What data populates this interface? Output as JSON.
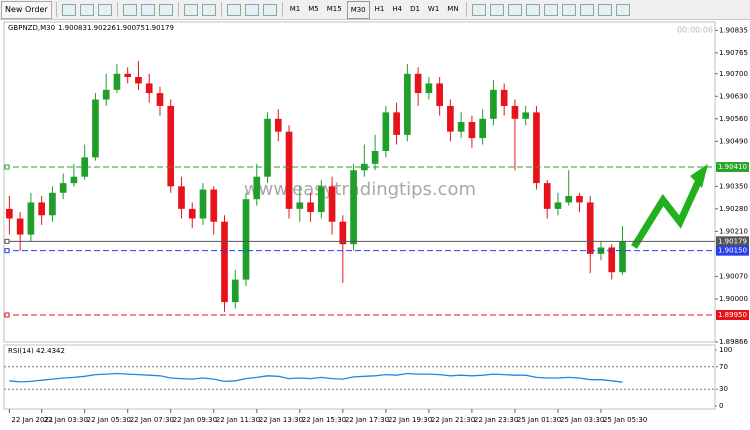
{
  "toolbar": {
    "new_order": "New Order",
    "timeframes": [
      "M1",
      "M5",
      "M15",
      "M30",
      "H1",
      "H4",
      "D1",
      "W1",
      "MN"
    ]
  },
  "chart_data": {
    "type": "candlestick",
    "symbol": "GBPNZD,M30",
    "countdown": "00:00:06",
    "watermark": "www.easytradingtips.com",
    "bull_color": "#1f9e2a",
    "bear_color": "#e8121a",
    "open": [
      1.9028,
      1.9025,
      1.902,
      1.903,
      1.9026,
      1.9033,
      1.9036,
      1.9038,
      1.9044,
      1.9062,
      1.9065,
      1.907,
      1.9069,
      1.9067,
      1.9064,
      1.906,
      1.9035,
      1.9028,
      1.9025,
      1.9034,
      1.9024,
      1.8999,
      1.9006,
      1.9031,
      1.9038,
      1.9056,
      1.9052,
      1.9028,
      1.903,
      1.9027,
      1.9035,
      1.9024,
      1.9017,
      1.904,
      1.9042,
      1.9046,
      1.9058,
      1.9051,
      1.907,
      1.9064,
      1.9067,
      1.906,
      1.9052,
      1.9055,
      1.905,
      1.9056,
      1.9065,
      1.906,
      1.9056,
      1.9058,
      1.9036,
      1.9028,
      1.903,
      1.9032,
      1.903,
      1.9014,
      1.9016,
      1.90083
    ],
    "high": [
      1.9032,
      1.9027,
      1.9033,
      1.9032,
      1.9035,
      1.9039,
      1.9042,
      1.9048,
      1.9064,
      1.907,
      1.9073,
      1.9072,
      1.9074,
      1.907,
      1.9066,
      1.9062,
      1.9038,
      1.903,
      1.9036,
      1.9035,
      1.9026,
      1.9009,
      1.9033,
      1.9042,
      1.9058,
      1.9059,
      1.9054,
      1.9035,
      1.9033,
      1.9037,
      1.9038,
      1.9026,
      1.9042,
      1.9048,
      1.9051,
      1.906,
      1.9061,
      1.9073,
      1.9072,
      1.9069,
      1.9069,
      1.9062,
      1.9058,
      1.9057,
      1.9059,
      1.9068,
      1.9067,
      1.9062,
      1.906,
      1.906,
      1.9037,
      1.9033,
      1.904,
      1.9033,
      1.9032,
      1.9018,
      1.9017,
      1.90226
    ],
    "low": [
      1.902,
      1.9015,
      1.9018,
      1.9023,
      1.9024,
      1.9031,
      1.9035,
      1.9037,
      1.9043,
      1.906,
      1.9064,
      1.9067,
      1.9065,
      1.9061,
      1.9057,
      1.9033,
      1.9025,
      1.9022,
      1.9023,
      1.902,
      1.8996,
      1.8997,
      1.9004,
      1.9029,
      1.9036,
      1.9049,
      1.9025,
      1.9024,
      1.9024,
      1.9025,
      1.902,
      1.9005,
      1.9015,
      1.9038,
      1.904,
      1.9044,
      1.9048,
      1.9049,
      1.906,
      1.9062,
      1.9057,
      1.9049,
      1.905,
      1.9047,
      1.9048,
      1.9054,
      1.9057,
      1.904,
      1.9054,
      1.9034,
      1.9025,
      1.9026,
      1.9029,
      1.9027,
      1.9008,
      1.9012,
      1.9006,
      1.90075
    ],
    "close": [
      1.9025,
      1.902,
      1.903,
      1.9026,
      1.9033,
      1.9036,
      1.9038,
      1.9044,
      1.9062,
      1.9065,
      1.907,
      1.9069,
      1.9067,
      1.9064,
      1.906,
      1.9035,
      1.9028,
      1.9025,
      1.9034,
      1.9024,
      1.8999,
      1.9006,
      1.9031,
      1.9038,
      1.9056,
      1.9052,
      1.9028,
      1.903,
      1.9027,
      1.9035,
      1.9024,
      1.9017,
      1.904,
      1.9042,
      1.9046,
      1.9058,
      1.9051,
      1.907,
      1.9064,
      1.9067,
      1.906,
      1.9052,
      1.9055,
      1.905,
      1.9056,
      1.9065,
      1.906,
      1.9056,
      1.9058,
      1.9036,
      1.9028,
      1.903,
      1.9032,
      1.903,
      1.9014,
      1.9016,
      1.90083,
      1.90179
    ],
    "xlim": [
      -0.5,
      65.6
    ],
    "xticks": [
      {
        "value": 0,
        "label": "22 Jan 2021"
      },
      {
        "value": 3,
        "label": "22 Jan 03:30"
      },
      {
        "value": 7,
        "label": "22 Jan 05:30"
      },
      {
        "value": 11,
        "label": "22 Jan 07:30"
      },
      {
        "value": 15,
        "label": "22 Jan 09:30"
      },
      {
        "value": 19,
        "label": "22 Jan 11:30"
      },
      {
        "value": 23,
        "label": "22 Jan 13:30"
      },
      {
        "value": 27,
        "label": "22 Jan 15:30"
      },
      {
        "value": 31,
        "label": "22 Jan 17:30"
      },
      {
        "value": 35,
        "label": "22 Jan 19:30"
      },
      {
        "value": 39,
        "label": "22 Jan 21:30"
      },
      {
        "value": 43,
        "label": "22 Jan 23:30"
      },
      {
        "value": 47,
        "label": "25 Jan 01:30"
      },
      {
        "value": 51,
        "label": "25 Jan 03:30"
      },
      {
        "value": 55,
        "label": "25 Jan 05:30"
      }
    ],
    "ylim": [
      1.89866,
      1.90861
    ],
    "yticks": [
      1.90835,
      1.90765,
      {
        "value": 1.907,
        "label": "1.90700"
      },
      {
        "value": 1.9063,
        "label": "1.90630"
      },
      {
        "value": 1.9056,
        "label": "1.90560"
      },
      {
        "value": 1.9049,
        "label": "1.90490"
      },
      {
        "value": 1.9035,
        "label": "1.90350"
      },
      {
        "value": 1.9028,
        "label": "1.90280"
      },
      {
        "value": 1.9021,
        "label": "1.90210"
      },
      {
        "value": 1.9007,
        "label": "1.90070"
      },
      {
        "value": 1.9,
        "label": "1.90000"
      },
      1.89866
    ],
    "hlines": [
      {
        "value": 1.9041,
        "label": "1.90410",
        "color": "#2aa52a"
      },
      {
        "value": 1.90179,
        "label": "1.90179",
        "color": "#555555"
      },
      {
        "value": 1.9015,
        "label": "1.90150",
        "color": "#2a3fe8"
      },
      {
        "value": 1.8995,
        "label": "1.89950",
        "color": "#e8121a"
      }
    ],
    "indicator": {
      "name": "RSI(14)",
      "color": "#1e88e5",
      "values": [
        45,
        43,
        44,
        46,
        48,
        50,
        51,
        53,
        56,
        57,
        58,
        57,
        56,
        55,
        54,
        50,
        49,
        48,
        50,
        48,
        44,
        45,
        49,
        51,
        54,
        53,
        49,
        50,
        49,
        51,
        49,
        48,
        52,
        53,
        54,
        56,
        55,
        58,
        57,
        57,
        56,
        54,
        55,
        54,
        55,
        57,
        56,
        55,
        55,
        51,
        50,
        50,
        51,
        50,
        47,
        47,
        45,
        42.4342
      ],
      "ylim": [
        0,
        100
      ],
      "yticks": [
        100,
        70,
        30,
        0
      ]
    }
  }
}
